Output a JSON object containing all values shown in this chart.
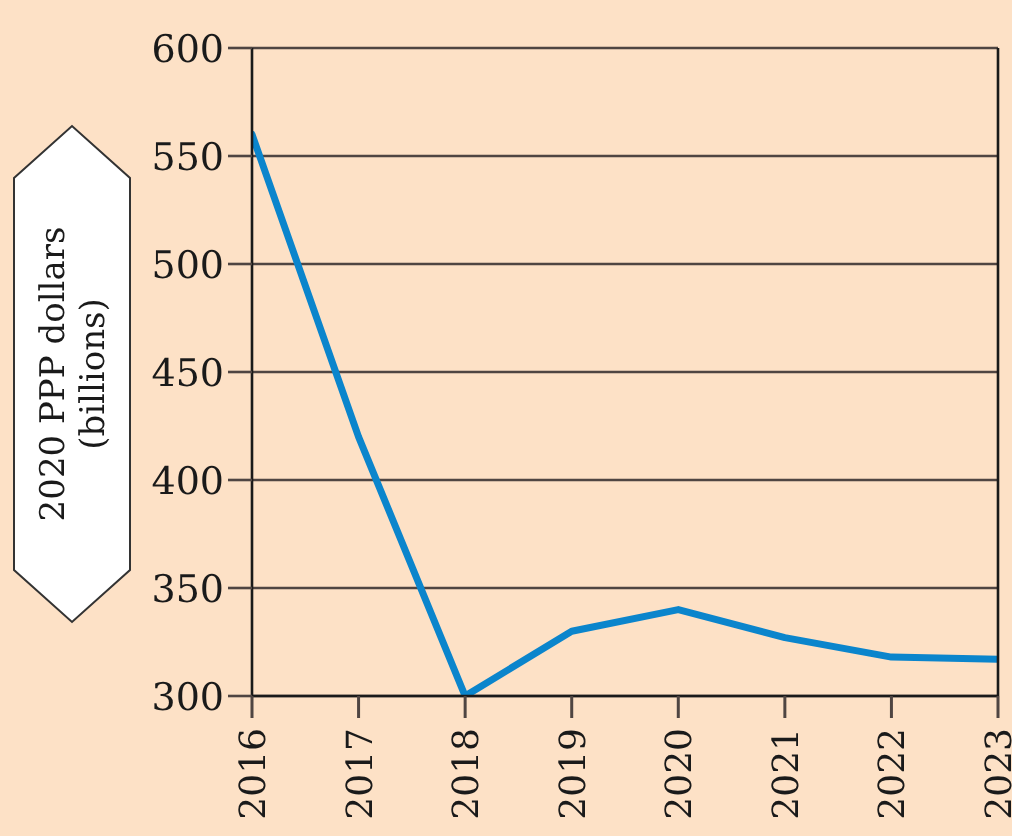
{
  "chart_data": {
    "type": "line",
    "ylabel": "2020 PPP dollars (billions)",
    "x": [
      2016,
      2017,
      2018,
      2019,
      2020,
      2021,
      2022,
      2023
    ],
    "values": [
      560,
      420,
      300,
      330,
      340,
      327,
      318,
      317
    ],
    "color": "#0b85cc",
    "xlim": [
      2016,
      2023
    ],
    "xticks": [
      2016,
      2017,
      2018,
      2019,
      2020,
      2021,
      2022,
      2023
    ],
    "ylim": [
      300,
      600
    ],
    "yticks": [
      300,
      350,
      400,
      450,
      500,
      550,
      600
    ],
    "grid": "y"
  }
}
